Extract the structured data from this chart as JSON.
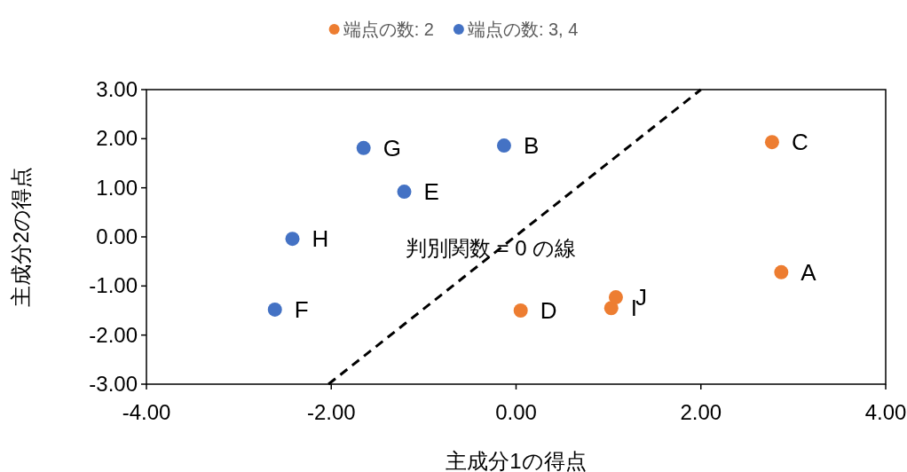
{
  "chart_data": {
    "type": "scatter",
    "xlabel": "主成分1の得点",
    "ylabel": "主成分2の得点",
    "legend": "top",
    "marker": "circle",
    "xlim": [
      -4,
      4
    ],
    "ylim": [
      -3,
      3
    ],
    "xticks": [
      {
        "value": -4,
        "label": "-4.00"
      },
      {
        "value": -2,
        "label": "-2.00"
      },
      {
        "value": 0,
        "label": "0.00"
      },
      {
        "value": 2,
        "label": "2.00"
      },
      {
        "value": 4,
        "label": "4.00"
      }
    ],
    "yticks": [
      {
        "value": -3,
        "label": "-3.00"
      },
      {
        "value": -2,
        "label": "-2.00"
      },
      {
        "value": -1,
        "label": "-1.00"
      },
      {
        "value": 0,
        "label": "0.00"
      },
      {
        "value": 1,
        "label": "1.00"
      },
      {
        "value": 2,
        "label": "2.00"
      },
      {
        "value": 3,
        "label": "3.00"
      }
    ],
    "series": [
      {
        "name": "端点の数: 2",
        "color": "#ed7d31",
        "x": [
          2.87,
          2.77,
          0.05,
          1.03,
          1.08
        ],
        "values": [
          -0.72,
          1.93,
          -1.5,
          -1.45,
          -1.23
        ]
      },
      {
        "name": "端点の数: 3, 4",
        "color": "#4472c4",
        "x": [
          -0.13,
          -1.21,
          -2.61,
          -1.65,
          -2.42
        ],
        "values": [
          1.86,
          0.92,
          -1.48,
          1.81,
          -0.04
        ]
      },
      {
        "type": "line",
        "color": "#000000",
        "line_style": "dashed",
        "marker": "none",
        "x": [
          -2.03,
          2.0
        ],
        "values": [
          -3,
          3
        ]
      }
    ],
    "annotations": [
      {
        "text": "A",
        "x": 2.87,
        "y": -0.72
      },
      {
        "text": "C",
        "x": 2.77,
        "y": 1.93
      },
      {
        "text": "D",
        "x": 0.05,
        "y": -1.5
      },
      {
        "text": "I",
        "x": 1.03,
        "y": -1.45
      },
      {
        "text": "J",
        "x": 1.08,
        "y": -1.23
      },
      {
        "text": "B",
        "x": -0.13,
        "y": 1.86
      },
      {
        "text": "E",
        "x": -1.21,
        "y": 0.92
      },
      {
        "text": "F",
        "x": -2.61,
        "y": -1.48
      },
      {
        "text": "G",
        "x": -1.65,
        "y": 1.81
      },
      {
        "text": "H",
        "x": -2.42,
        "y": -0.04
      },
      "判別関数 = 0 の線"
    ]
  }
}
